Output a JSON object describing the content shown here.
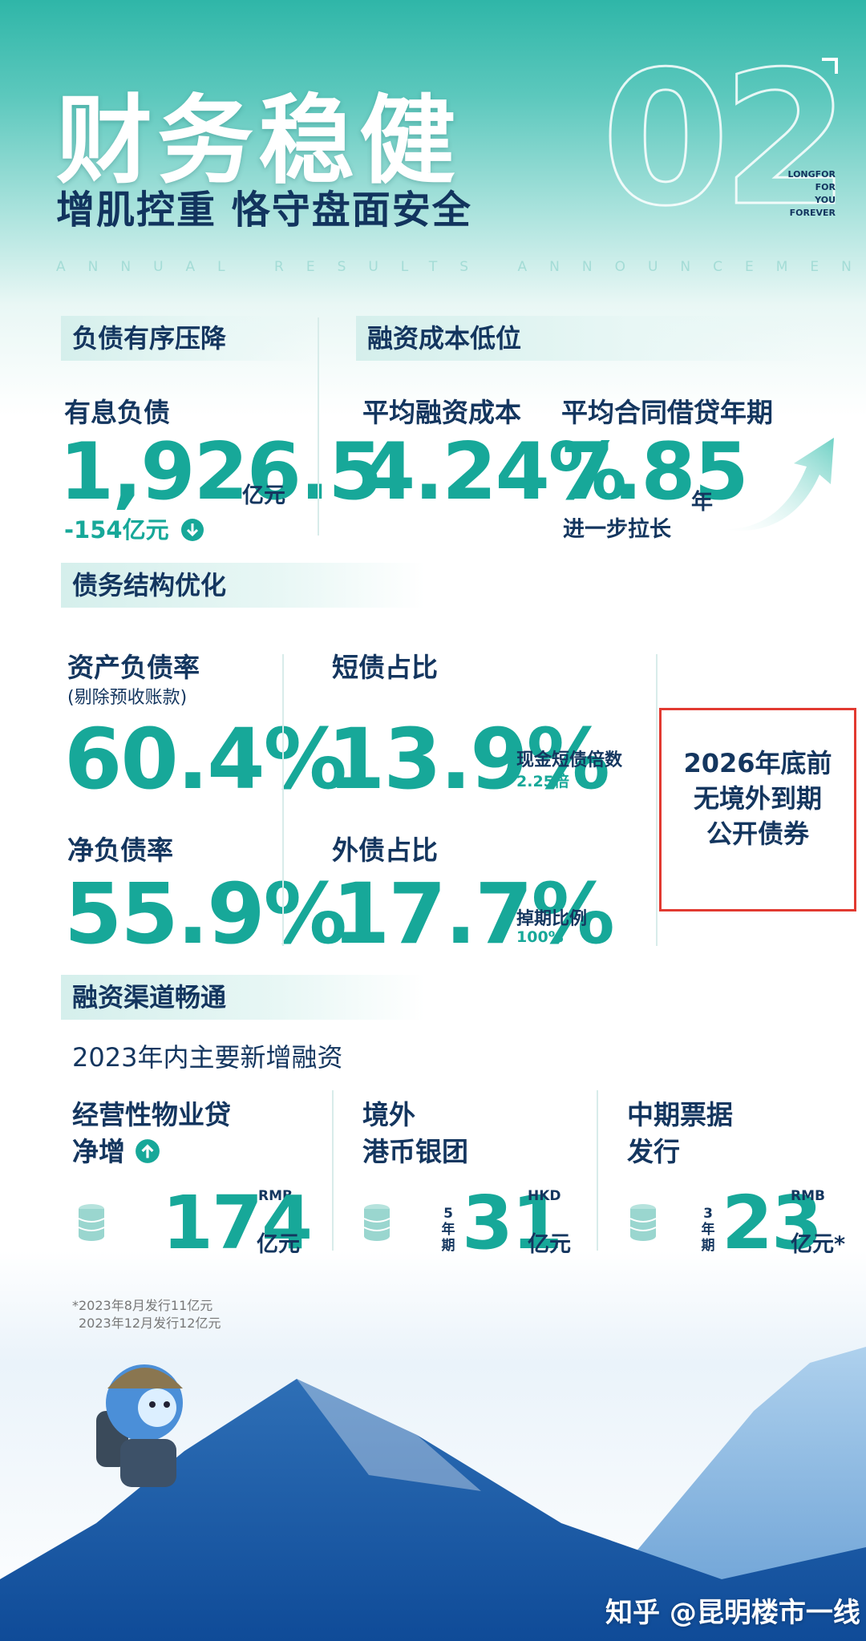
{
  "header": {
    "title": "财务稳健",
    "subtitle": "增肌控重 恪守盘面安全",
    "number": "02",
    "brand_lines": [
      "LONGFOR",
      "FOR",
      "YOU",
      "FOREVER"
    ],
    "announcement": "ANNUAL RESULTS ANNOUNCEMENT"
  },
  "debt": {
    "section": "负债有序压降",
    "label": "有息负债",
    "value": "1,926.5",
    "unit": "亿元",
    "change": "-154亿元"
  },
  "financing_cost": {
    "section": "融资成本低位",
    "avg_cost_label": "平均融资成本",
    "avg_cost_value": "4.24%",
    "avg_term_label": "平均合同借贷年期",
    "avg_term_value": "7.85",
    "avg_term_unit": "年",
    "avg_term_note": "进一步拉长"
  },
  "structure": {
    "section": "债务结构优化",
    "asset_liability_label": "资产负债率",
    "asset_liability_sub": "(剔除预收账款)",
    "asset_liability_value": "60.4%",
    "net_debt_label": "净负债率",
    "net_debt_value": "55.9%",
    "short_debt_label": "短债占比",
    "short_debt_value": "13.9%",
    "cash_ratio_label": "现金短债倍数",
    "cash_ratio_value": "2.25倍",
    "foreign_debt_label": "外债占比",
    "foreign_debt_value": "17.7%",
    "hedge_label": "掉期比例",
    "hedge_value": "100%",
    "callout_lines": [
      "2026年底前",
      "无境外到期",
      "公开债券"
    ]
  },
  "channels": {
    "section": "融资渠道畅通",
    "subtitle": "2023年内主要新增融资",
    "items": [
      {
        "label_1": "经营性物业贷",
        "label_2": "净增",
        "currency": "RMB",
        "value": "174",
        "unit": "亿元",
        "term_1": "",
        "term_2": "",
        "term_3": ""
      },
      {
        "label_1": "境外",
        "label_2": "港币银团",
        "currency": "HKD",
        "value": "31",
        "unit": "亿元",
        "term_1": "5",
        "term_2": "年",
        "term_3": "期"
      },
      {
        "label_1": "中期票据",
        "label_2": "发行",
        "currency": "RMB",
        "value": "23",
        "unit": "亿元*",
        "term_1": "3",
        "term_2": "年",
        "term_3": "期"
      }
    ],
    "footnote_1": "*2023年8月发行11亿元",
    "footnote_2": "2023年12月发行12亿元"
  },
  "watermark": "知乎 @昆明楼市一线",
  "colors": {
    "teal": "#17a899",
    "navy": "#14365f",
    "highlight_border": "#e23a31"
  }
}
